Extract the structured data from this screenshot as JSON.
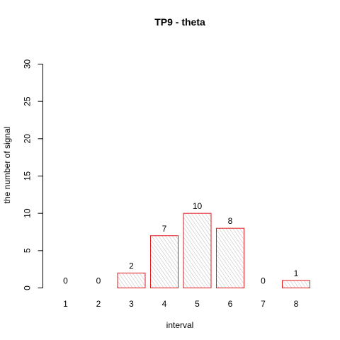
{
  "chart_data": {
    "type": "bar",
    "title": "TP9  -  theta",
    "xlabel": "interval",
    "ylabel": "the number of signal",
    "categories": [
      "1",
      "2",
      "3",
      "4",
      "5",
      "6",
      "7",
      "8"
    ],
    "values": [
      0,
      0,
      2,
      7,
      10,
      8,
      0,
      1
    ],
    "data_labels": [
      "0",
      "0",
      "2",
      "7",
      "10",
      "8",
      "0",
      "1"
    ],
    "ylim": [
      0,
      30
    ],
    "yticks": [
      0,
      5,
      10,
      15,
      20,
      25,
      30
    ],
    "grid": false,
    "legend": "none",
    "colors": {
      "bar_border": "#e31a1c",
      "bar_hatch": "#9a9a9a",
      "axis": "#000000",
      "background": "#ffffff"
    }
  }
}
